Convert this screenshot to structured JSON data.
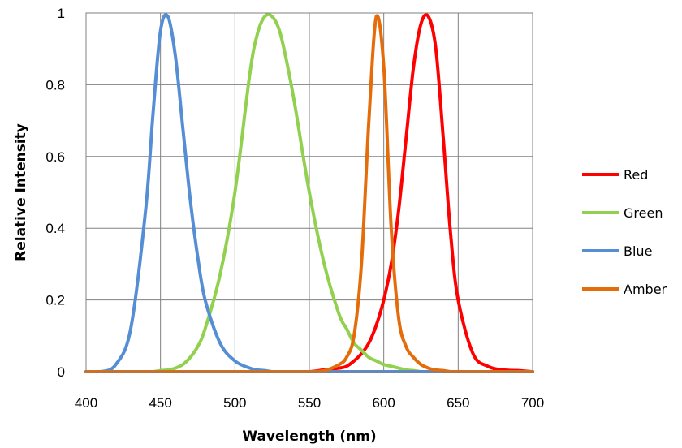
{
  "chart_data": {
    "type": "line",
    "xlabel": "Wavelength (nm)",
    "ylabel": "Relative Intensity",
    "xlim": [
      400,
      700
    ],
    "ylim": [
      0,
      1
    ],
    "x_ticks": [
      "400",
      "450",
      "500",
      "550",
      "600",
      "650",
      "700"
    ],
    "y_ticks": [
      "0",
      "0.2",
      "0.4",
      "0.6",
      "0.8",
      "1"
    ],
    "grid": true,
    "legend_position": "right",
    "x": [
      400,
      410,
      420,
      430,
      440,
      445,
      450,
      455,
      460,
      465,
      470,
      475,
      480,
      490,
      500,
      510,
      515,
      520,
      525,
      530,
      535,
      540,
      550,
      560,
      570,
      575,
      580,
      585,
      590,
      595,
      600,
      605,
      610,
      615,
      620,
      625,
      630,
      635,
      640,
      645,
      650,
      660,
      670,
      680,
      690,
      700
    ],
    "series": [
      {
        "name": "Red",
        "color": "#ff0000",
        "values": [
          0,
          0,
          0,
          0,
          0,
          0,
          0,
          0,
          0,
          0,
          0,
          0,
          0,
          0,
          0,
          0,
          0,
          0,
          0,
          0,
          0,
          0,
          0,
          0.005,
          0.01,
          0.015,
          0.03,
          0.05,
          0.08,
          0.13,
          0.2,
          0.3,
          0.45,
          0.65,
          0.85,
          0.97,
          0.99,
          0.9,
          0.65,
          0.38,
          0.2,
          0.05,
          0.015,
          0.005,
          0.003,
          0
        ]
      },
      {
        "name": "Green",
        "color": "#92d050",
        "values": [
          0,
          0,
          0,
          0,
          0,
          0,
          0.003,
          0.005,
          0.01,
          0.02,
          0.04,
          0.07,
          0.12,
          0.27,
          0.5,
          0.83,
          0.94,
          0.99,
          0.99,
          0.95,
          0.86,
          0.75,
          0.5,
          0.3,
          0.16,
          0.12,
          0.08,
          0.06,
          0.04,
          0.03,
          0.02,
          0.015,
          0.01,
          0.005,
          0.003,
          0,
          0,
          0,
          0,
          0,
          0,
          0,
          0,
          0,
          0,
          0
        ]
      },
      {
        "name": "Blue",
        "color": "#558ed5",
        "values": [
          0,
          0,
          0.02,
          0.12,
          0.45,
          0.72,
          0.95,
          0.99,
          0.88,
          0.68,
          0.48,
          0.32,
          0.2,
          0.08,
          0.03,
          0.01,
          0.005,
          0.003,
          0,
          0,
          0,
          0,
          0,
          0,
          0,
          0,
          0,
          0,
          0,
          0,
          0,
          0,
          0,
          0,
          0,
          0,
          0,
          0,
          0,
          0,
          0,
          0,
          0,
          0,
          0,
          0
        ]
      },
      {
        "name": "Amber",
        "color": "#e46c0a",
        "values": [
          0,
          0,
          0,
          0,
          0,
          0,
          0,
          0,
          0,
          0,
          0,
          0,
          0,
          0,
          0,
          0,
          0,
          0,
          0,
          0,
          0,
          0,
          0,
          0.003,
          0.02,
          0.04,
          0.1,
          0.3,
          0.7,
          0.99,
          0.85,
          0.4,
          0.15,
          0.07,
          0.04,
          0.02,
          0.01,
          0.005,
          0.003,
          0,
          0,
          0,
          0,
          0,
          0,
          0
        ]
      }
    ]
  }
}
